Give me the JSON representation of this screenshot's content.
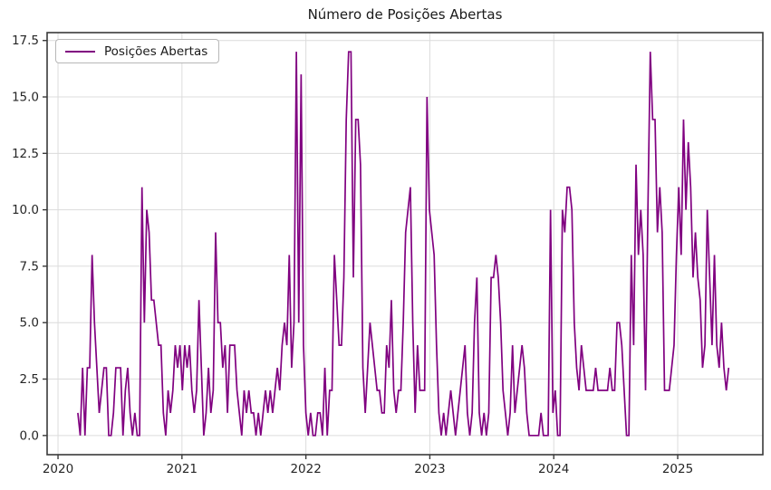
{
  "figure": {
    "title": "Número de Posições Abertas",
    "legend": {
      "label": "Posições Abertas"
    }
  },
  "chart_data": {
    "type": "line",
    "title": "Número de Posições Abertas",
    "xlabel": "",
    "ylabel": "",
    "grid": true,
    "legend_position": "upper-left",
    "background": "#ffffff",
    "grid_color": "#dcdcdc",
    "axis_color": "#3a3a3a",
    "text_color": "#262626",
    "x_ticks": [
      2020,
      2021,
      2022,
      2023,
      2024,
      2025
    ],
    "x_tick_labels": [
      "2020",
      "2021",
      "2022",
      "2023",
      "2024",
      "2025"
    ],
    "y_ticks": [
      0,
      2.5,
      5,
      7.5,
      10,
      12.5,
      15,
      17.5
    ],
    "y_tick_labels": [
      "0.0",
      "2.5",
      "5.0",
      "7.5",
      "10.0",
      "12.5",
      "15.0",
      "17.5"
    ],
    "xlim": [
      2019.912,
      2025.687
    ],
    "ylim": [
      -0.85,
      17.85
    ],
    "series": [
      {
        "name": "Posições Abertas",
        "color": "#800080",
        "x_start_year": 2020.16,
        "x_step_years": 0.0191651,
        "values": [
          1,
          0,
          3,
          0,
          3,
          3,
          8,
          5,
          3,
          1,
          2,
          3,
          3,
          0,
          0,
          1,
          3,
          3,
          3,
          0,
          2,
          3,
          1,
          0,
          1,
          0,
          0,
          11,
          5,
          10,
          9,
          6,
          6,
          5,
          4,
          4,
          1,
          0,
          2,
          1,
          2,
          4,
          3,
          4,
          2,
          4,
          3,
          4,
          2,
          1,
          2,
          6,
          3,
          0,
          1,
          3,
          1,
          2,
          9,
          5,
          5,
          3,
          4,
          1,
          4,
          4,
          4,
          2,
          1,
          0,
          2,
          1,
          2,
          1,
          1,
          0,
          1,
          0,
          1,
          2,
          1,
          2,
          1,
          2,
          3,
          2,
          4,
          5,
          4,
          8,
          3,
          5,
          17,
          5,
          16,
          4,
          1,
          0,
          1,
          0,
          0,
          1,
          1,
          0,
          3,
          0,
          2,
          2,
          8,
          6,
          4,
          4,
          7,
          14,
          17,
          17,
          7,
          14,
          14,
          12,
          3,
          1,
          3,
          5,
          4,
          3,
          2,
          2,
          1,
          1,
          4,
          3,
          6,
          2,
          1,
          2,
          2,
          5,
          9,
          10,
          11,
          5,
          1,
          4,
          2,
          2,
          2,
          15,
          10,
          9,
          8,
          4,
          1,
          0,
          1,
          0,
          1,
          2,
          1,
          0,
          1,
          2,
          3,
          4,
          1,
          0,
          1,
          5,
          7,
          1,
          0,
          1,
          0,
          1,
          7,
          7,
          8,
          7,
          5,
          2,
          1,
          0,
          1,
          4,
          1,
          2,
          3,
          4,
          3,
          1,
          0,
          0,
          0,
          0,
          0,
          1,
          0,
          0,
          0,
          10,
          1,
          2,
          0,
          0,
          10,
          9,
          11,
          11,
          10,
          5,
          3,
          2,
          4,
          3,
          2,
          2,
          2,
          2,
          3,
          2,
          2,
          2,
          2,
          2,
          3,
          2,
          2,
          5,
          5,
          4,
          2,
          0,
          0,
          8,
          4,
          12,
          8,
          10,
          8,
          2,
          10,
          17,
          14,
          14,
          9,
          11,
          9,
          2,
          2,
          2,
          3,
          4,
          8,
          11,
          8,
          14,
          10,
          13,
          11,
          7,
          9,
          7,
          6,
          3,
          4,
          10,
          7,
          4,
          8,
          4,
          3,
          5,
          3,
          2,
          3
        ]
      }
    ]
  }
}
